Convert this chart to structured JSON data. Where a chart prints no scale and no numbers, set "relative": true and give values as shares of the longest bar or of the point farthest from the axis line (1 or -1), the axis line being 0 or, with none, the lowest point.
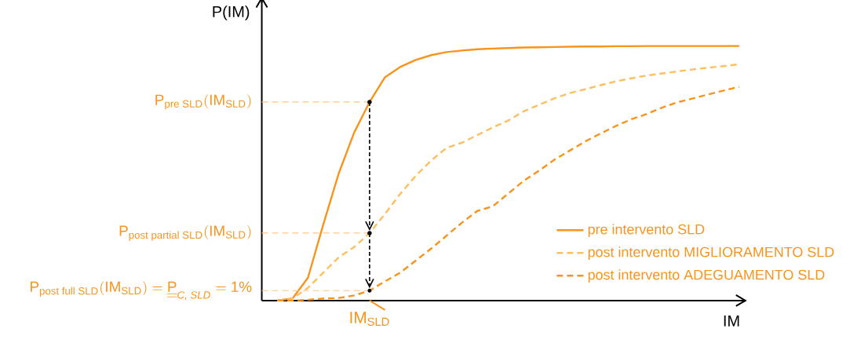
{
  "chart_data": {
    "type": "line",
    "xlabel": "IM",
    "ylabel": "P(IM)",
    "relative": true,
    "categories": [
      null,
      null,
      null,
      null,
      null,
      null,
      null,
      null,
      null,
      null,
      null,
      null,
      null,
      null,
      null,
      null,
      null,
      null,
      null,
      null,
      null,
      null,
      null,
      null,
      null,
      null,
      null,
      null,
      null,
      null,
      null
    ],
    "series": [
      {
        "name": "pre intervento SLD",
        "color": "#f7941d",
        "line_style": "solid",
        "values": [
          0,
          0.008,
          0.09,
          0.3,
          0.5,
          0.66,
          0.78,
          0.877,
          0.918,
          0.945,
          0.964,
          0.976,
          0.982,
          0.987,
          0.99,
          0.992,
          0.994,
          0.995,
          0.996,
          0.997,
          0.998,
          0.998,
          0.999,
          0.999,
          1,
          1,
          1,
          1,
          1,
          1,
          1
        ]
      },
      {
        "name": "post intervento MIGLIORAMENTO SLD",
        "color": "#fdc060",
        "line_style": "dashed",
        "values": [
          0,
          0.008,
          0.05,
          0.11,
          0.17,
          0.21,
          0.265,
          0.34,
          0.42,
          0.49,
          0.55,
          0.6,
          0.62,
          0.65,
          0.68,
          0.707,
          0.743,
          0.769,
          0.794,
          0.815,
          0.83,
          0.846,
          0.861,
          0.873,
          0.884,
          0.892,
          0.9,
          0.908,
          0.915,
          0.921,
          0.928
        ]
      },
      {
        "name": "post intervento ADEGUAMENTO SLD",
        "color": "#f7941d",
        "line_style": "dashed",
        "values": [
          0,
          0,
          0.003,
          0.008,
          0.01,
          0.02,
          0.039,
          0.075,
          0.11,
          0.157,
          0.204,
          0.255,
          0.306,
          0.352,
          0.37,
          0.42,
          0.47,
          0.51,
          0.553,
          0.589,
          0.625,
          0.656,
          0.686,
          0.712,
          0.733,
          0.758,
          0.779,
          0.794,
          0.81,
          0.825,
          0.84
        ]
      }
    ],
    "ref_lines": [
      {
        "axis": "y",
        "value": 0.78,
        "label": "\\text{P}_{\\text{pre SLD}}(\\text{IM}_{\\text{SLD}})",
        "color": "#fbc68a",
        "line_style": "dashed"
      },
      {
        "axis": "y",
        "value": 0.265,
        "label": "\\text{P}_{\\text{post partial SLD}}(\\text{IM}_{\\text{SLD}})",
        "color": "#fbc68a",
        "line_style": "dashed"
      },
      {
        "axis": "y",
        "value": 0.039,
        "label": "\\text{P}_{\\text{post full SLD}}(\\text{IM}_{\\text{SLD}}) = \\underline{\\underline{\\text{P}}}_{\\textit{C, SLD}} = \\text{1\\%}",
        "color": "#fbc68a",
        "line_style": "dashed"
      }
    ],
    "annotations": [
      "\\text{IM}_{\\text{SLD}}"
    ],
    "legend": "bottom right"
  }
}
